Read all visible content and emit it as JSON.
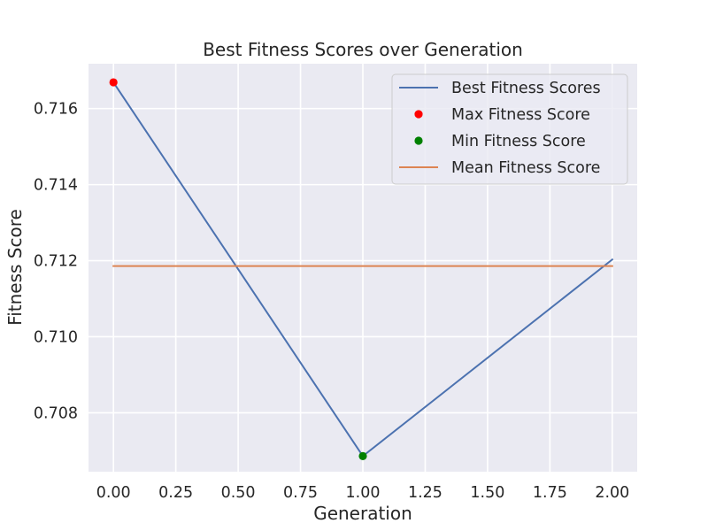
{
  "chart_data": {
    "type": "line",
    "title": "Best Fitness Scores over Generation",
    "xlabel": "Generation",
    "ylabel": "Fitness Score",
    "xlim": [
      -0.1,
      2.1
    ],
    "ylim": [
      0.70645,
      0.71718
    ],
    "x_ticks": [
      "0.00",
      "0.25",
      "0.50",
      "0.75",
      "1.00",
      "1.25",
      "1.50",
      "1.75",
      "2.00"
    ],
    "y_ticks": [
      "0.708",
      "0.710",
      "0.712",
      "0.714",
      "0.716"
    ],
    "grid": true,
    "legend_position": "upper right",
    "background": "#eaeaf2",
    "series": [
      {
        "name": "Best Fitness Scores",
        "kind": "line",
        "color": "#4c72b0",
        "x": [
          0,
          1,
          2
        ],
        "y": [
          0.71669,
          0.70686,
          0.71203
        ]
      },
      {
        "name": "Max Fitness Score",
        "kind": "scatter",
        "color": "#ff0000",
        "x": [
          0
        ],
        "y": [
          0.71669
        ]
      },
      {
        "name": "Min Fitness Score",
        "kind": "scatter",
        "color": "#008000",
        "x": [
          1
        ],
        "y": [
          0.70686
        ]
      },
      {
        "name": "Mean Fitness Score",
        "kind": "hline",
        "color": "#dd8452",
        "x": [
          0,
          2
        ],
        "y": [
          0.71186,
          0.71186
        ]
      }
    ]
  }
}
